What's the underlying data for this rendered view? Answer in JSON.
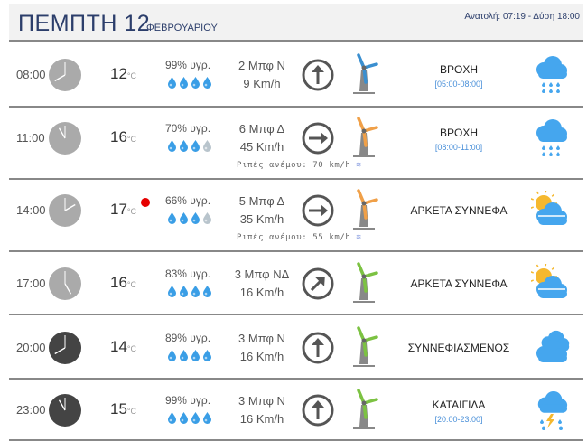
{
  "header": {
    "day": "ΠΕΜΠΤΗ 12",
    "month": "ΦΕΒΡΟΥΑΡΙΟΥ",
    "sun": "Ανατολή: 07:19  - Δύση 18:00"
  },
  "rows": [
    {
      "time": "08:00",
      "clock_icon": "clock-day-icon",
      "temp": "12",
      "unit": "°C",
      "humidity": "99% υγρ.",
      "drops_filled": 4,
      "beaufort": "2 Μπφ Ν",
      "speed": "9 Km/h",
      "direction": "N",
      "turbine_color": "#3a8fd0",
      "condition": "ΒΡΟΧΗ",
      "range": "[05:00-08:00]",
      "weather_icon": "rain-icon",
      "night": false,
      "alert": false
    },
    {
      "time": "11:00",
      "clock_icon": "clock-day-icon",
      "temp": "16",
      "unit": "°C",
      "humidity": "70% υγρ.",
      "drops_filled": 3,
      "beaufort": "6 Μπφ Δ",
      "speed": "45 Km/h",
      "direction": "W",
      "turbine_color": "#f0a048",
      "gust": "Ριπές ανέμου: 70 km/h",
      "condition": "ΒΡΟΧΗ",
      "range": "[08:00-11:00]",
      "weather_icon": "rain-icon",
      "night": false,
      "alert": false
    },
    {
      "time": "14:00",
      "clock_icon": "clock-day-icon",
      "temp": "17",
      "unit": "°C",
      "humidity": "66% υγρ.",
      "drops_filled": 3,
      "beaufort": "5 Μπφ Δ",
      "speed": "35 Km/h",
      "direction": "W",
      "turbine_color": "#f0a048",
      "gust": "Ριπές ανέμου: 55 km/h",
      "condition": "ΑΡΚΕΤΑ ΣΥΝΝΕΦΑ",
      "weather_icon": "partly-cloudy-icon",
      "night": false,
      "alert": true
    },
    {
      "time": "17:00",
      "clock_icon": "clock-day-icon",
      "temp": "16",
      "unit": "°C",
      "humidity": "83% υγρ.",
      "drops_filled": 4,
      "beaufort": "3 Μπφ ΝΔ",
      "speed": "16 Km/h",
      "direction": "SW",
      "turbine_color": "#7cc242",
      "condition": "ΑΡΚΕΤΑ ΣΥΝΝΕΦΑ",
      "weather_icon": "partly-cloudy-icon",
      "night": false,
      "alert": false
    },
    {
      "time": "20:00",
      "clock_icon": "clock-night-icon",
      "temp": "14",
      "unit": "°C",
      "humidity": "89% υγρ.",
      "drops_filled": 4,
      "beaufort": "3 Μπφ Ν",
      "speed": "16 Km/h",
      "direction": "N",
      "turbine_color": "#7cc242",
      "condition": "ΣΥΝΝΕΦΙΑΣΜΕΝΟΣ",
      "weather_icon": "cloudy-icon",
      "night": true,
      "alert": false
    },
    {
      "time": "23:00",
      "clock_icon": "clock-night-icon",
      "temp": "15",
      "unit": "°C",
      "humidity": "99% υγρ.",
      "drops_filled": 4,
      "beaufort": "3 Μπφ Ν",
      "speed": "16 Km/h",
      "direction": "N",
      "turbine_color": "#7cc242",
      "condition": "ΚΑΤΑΙΓΙΔΑ",
      "range": "[20:00-23:00]",
      "weather_icon": "thunderstorm-icon",
      "night": true,
      "alert": false
    }
  ],
  "colors": {
    "drop_on": "#3a9ee6",
    "drop_off": "#b8c4cc",
    "cloud": "#45a6ee",
    "sun": "#f5b82e",
    "alert": "#e60000"
  }
}
